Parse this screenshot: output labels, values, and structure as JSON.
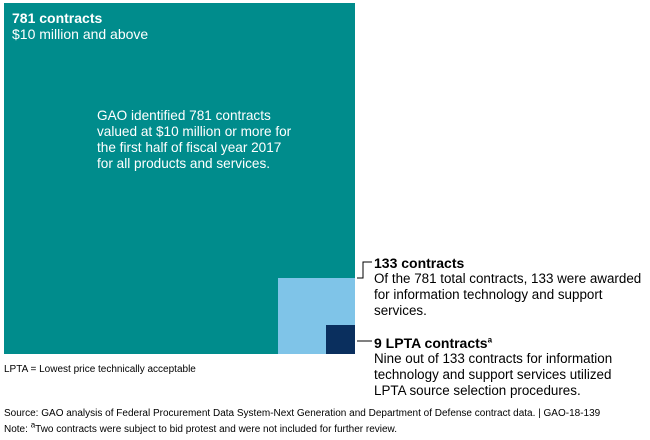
{
  "big": {
    "title": "781 contracts",
    "subtitle": "$10 million and above",
    "description": "GAO identified 781 contracts valued at $10 million or more for the first half of fiscal year 2017 for all products and services."
  },
  "mid_callout": {
    "title": "133 contracts",
    "text": "Of the 781 total contracts, 133 were awarded for information technology and support services."
  },
  "small_callout": {
    "title": "9 LPTA contracts",
    "title_superscript": "a",
    "text": "Nine out of 133 contracts for information technology and support services utilized LPTA source selection procedures."
  },
  "notes": {
    "lpta_definition": "LPTA = Lowest price technically acceptable",
    "source": "Source: GAO analysis of Federal Procurement Data System-Next Generation and Department of Defense contract data.  |  GAO-18-139",
    "footnote_prefix": "Note: ",
    "footnote_superscript": "a",
    "footnote_text": "Two contracts were subject to bid protest and were not included for further review."
  },
  "colors": {
    "teal": "#008c8c",
    "light_blue": "#7fc4e8",
    "navy": "#0a2f5e"
  }
}
